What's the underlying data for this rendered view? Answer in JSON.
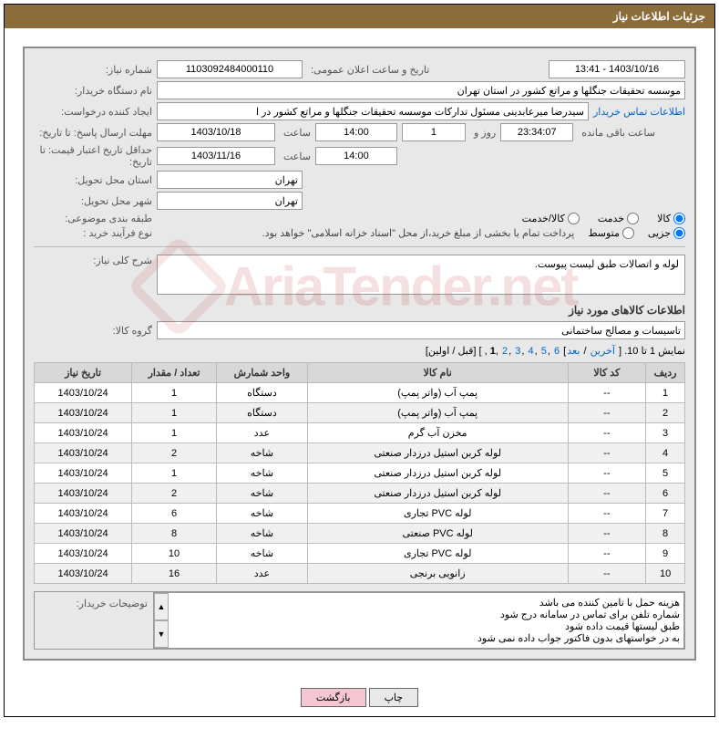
{
  "header": {
    "title": "جزئیات اطلاعات نیاز"
  },
  "form": {
    "need_no_label": "شماره نیاز:",
    "need_no": "1103092484000110",
    "announce_label": "تاریخ و ساعت اعلان عمومی:",
    "announce_dt": "1403/10/16 - 13:41",
    "buyer_label": "نام دستگاه خریدار:",
    "buyer": "موسسه تحقیقات جنگلها و مراتع کشور در استان تهران",
    "requester_label": "ایجاد کننده درخواست:",
    "requester": "سیدرضا میرعابدینی مسئول تدارکات موسسه تحقیقات جنگلها و مراتع کشور در ا",
    "contact_link": "اطلاعات تماس خریدار",
    "deadline_label": "مهلت ارسال پاسخ: تا تاریخ:",
    "deadline_date": "1403/10/18",
    "hour_label": "ساعت",
    "deadline_hour": "14:00",
    "day_label": "روز و",
    "days_left": "1",
    "countdown": "23:34:07",
    "remain_label": "ساعت باقی مانده",
    "validity_label": "حداقل تاریخ اعتبار قیمت: تا تاریخ:",
    "validity_date": "1403/11/16",
    "validity_hour": "14:00",
    "province_label": "استان محل تحویل:",
    "province": "تهران",
    "city_label": "شهر محل تحویل:",
    "city": "تهران",
    "cat_label": "طبقه بندی موضوعی:",
    "cat_kala": "کالا",
    "cat_khedmat": "خدمت",
    "cat_both": "کالا/خدمت",
    "process_label": "نوع فرآیند خرید :",
    "proc_partial": "جزیی",
    "proc_medium": "متوسط",
    "proc_note": "پرداخت تمام یا بخشی از مبلغ خرید،از محل \"اسناد خزانه اسلامی\" خواهد بود.",
    "overall_label": "شرح کلی نیاز:",
    "overall_desc": "لوله و اتصالات طبق لیست پیوست.",
    "goods_section": "اطلاعات کالاهای مورد نیاز",
    "group_label": "گروه کالا:",
    "group": "تاسیسات و مصالح ساختمانی"
  },
  "pagination": {
    "prefix": "نمایش 1 تا 10. [",
    "last": "آخرین",
    "next": "بعد",
    "nums": [
      "6",
      "5",
      "4",
      "3",
      "2",
      "1"
    ],
    "current": "1",
    "prev_first": "] [قبل / اولین]"
  },
  "table": {
    "columns": [
      "ردیف",
      "کد کالا",
      "نام کالا",
      "واحد شمارش",
      "تعداد / مقدار",
      "تاریخ نیاز"
    ],
    "col_widths": [
      "6%",
      "12%",
      "40%",
      "14%",
      "13%",
      "15%"
    ],
    "rows": [
      [
        "1",
        "--",
        "پمپ آب (واتر پمپ)",
        "دستگاه",
        "1",
        "1403/10/24"
      ],
      [
        "2",
        "--",
        "پمپ آب (واتر پمپ)",
        "دستگاه",
        "1",
        "1403/10/24"
      ],
      [
        "3",
        "--",
        "مخزن آب گرم",
        "عدد",
        "1",
        "1403/10/24"
      ],
      [
        "4",
        "--",
        "لوله کربن استیل درزدار صنعتی",
        "شاخه",
        "2",
        "1403/10/24"
      ],
      [
        "5",
        "--",
        "لوله کربن استیل درزدار صنعتی",
        "شاخه",
        "1",
        "1403/10/24"
      ],
      [
        "6",
        "--",
        "لوله کربن استیل درزدار صنعتی",
        "شاخه",
        "2",
        "1403/10/24"
      ],
      [
        "7",
        "--",
        "لوله PVC تجاری",
        "شاخه",
        "6",
        "1403/10/24"
      ],
      [
        "8",
        "--",
        "لوله PVC صنعتی",
        "شاخه",
        "8",
        "1403/10/24"
      ],
      [
        "9",
        "--",
        "لوله PVC تجاری",
        "شاخه",
        "10",
        "1403/10/24"
      ],
      [
        "10",
        "--",
        "زانویی برنجی",
        "عدد",
        "16",
        "1403/10/24"
      ]
    ]
  },
  "notes": {
    "label": "توضیحات خریدار:",
    "lines": [
      "هزینه حمل با تامین کننده می باشد",
      "شماره تلفن برای تماس در سامانه درج شود",
      "طبق لیستها قیمت داده شود",
      "به در خواستهای بدون فاکتور جواب داده نمی شود"
    ]
  },
  "buttons": {
    "print": "چاپ",
    "back": "بازگشت"
  },
  "watermark": "AriaTender.net",
  "colors": {
    "header_bg": "#8a6d3b",
    "panel_bg": "#e8e8e8",
    "link": "#0066cc",
    "btn_back_bg": "#f4c7d3"
  }
}
